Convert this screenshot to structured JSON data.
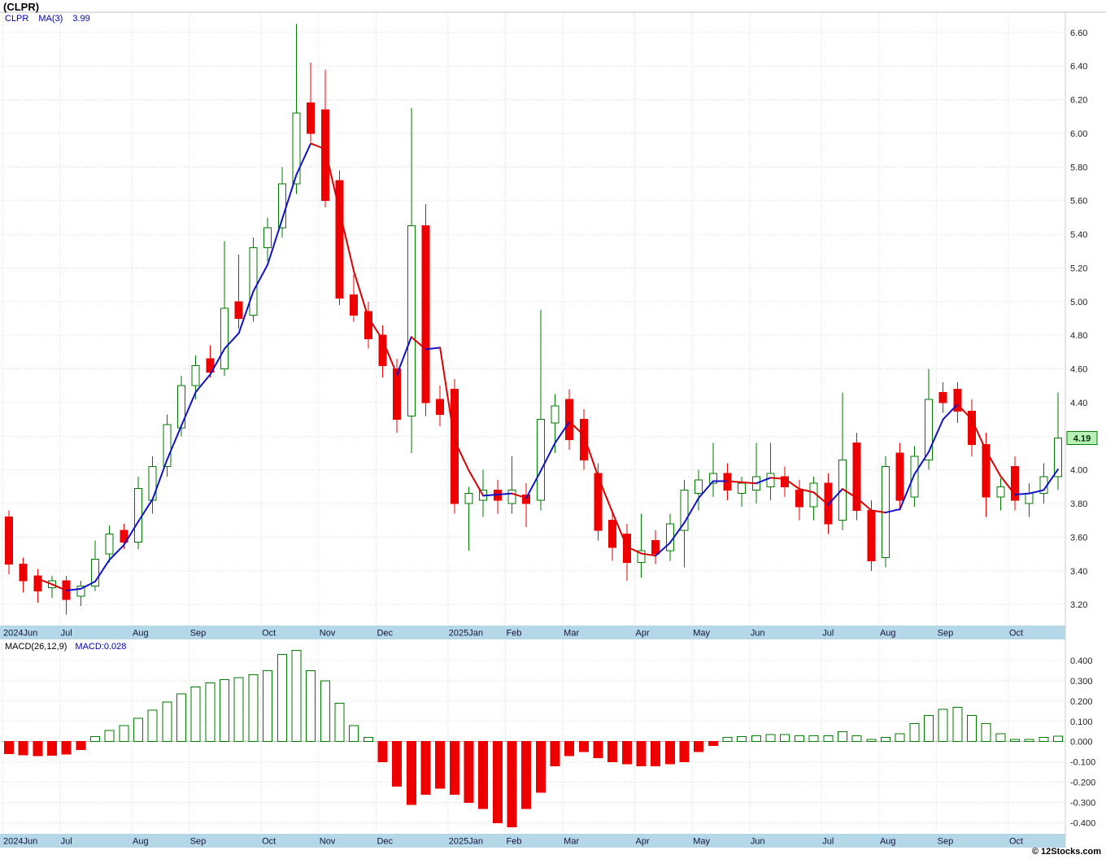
{
  "title": "(CLPR)",
  "legend": {
    "symbol": "CLPR",
    "ma_label": "MA(3)",
    "ma_value": "3.99"
  },
  "macd_legend": {
    "label": "MACD(26,12,9)",
    "value_label": "MACD:0.028"
  },
  "footer": {
    "copyright": "© 12Stocks.com"
  },
  "last_price_tag": "4.19",
  "colors": {
    "up": "#007a00",
    "down": "#ee0000",
    "ma_up": "#1111cc",
    "ma_down": "#dd0000",
    "grid": "#d9d9d9",
    "axis_text": "#222222",
    "strip_bg": "#b5d8e9",
    "strip_text": "#14143c",
    "tag_bg": "#b8f0b8",
    "tag_border": "#008000",
    "tag_text": "#003300",
    "legend_color": "#0000bb"
  },
  "chart_data": {
    "type": "candlestick",
    "symbol": "CLPR",
    "title": "(CLPR)",
    "ma_period": 3,
    "price_axis": {
      "min": 3.08,
      "max": 6.72,
      "ticks": [
        6.6,
        6.4,
        6.2,
        6.0,
        5.8,
        5.6,
        5.4,
        5.2,
        5.0,
        4.8,
        4.6,
        4.4,
        4.2,
        4.0,
        3.8,
        3.6,
        3.4,
        3.2
      ]
    },
    "macd_axis": {
      "min": -0.45,
      "max": 0.5,
      "ticks": [
        0.4,
        0.3,
        0.2,
        0.1,
        0.0,
        -0.1,
        -0.2,
        -0.3,
        -0.4
      ]
    },
    "months": [
      {
        "label": "2024Jun",
        "i": 0
      },
      {
        "label": "Jul",
        "i": 4
      },
      {
        "label": "Aug",
        "i": 9
      },
      {
        "label": "Sep",
        "i": 13
      },
      {
        "label": "Oct",
        "i": 18
      },
      {
        "label": "Nov",
        "i": 22
      },
      {
        "label": "Dec",
        "i": 26
      },
      {
        "label": "2025Jan",
        "i": 31
      },
      {
        "label": "Feb",
        "i": 35
      },
      {
        "label": "Mar",
        "i": 39
      },
      {
        "label": "Apr",
        "i": 44
      },
      {
        "label": "May",
        "i": 48
      },
      {
        "label": "Jun",
        "i": 52
      },
      {
        "label": "Jul",
        "i": 57
      },
      {
        "label": "Aug",
        "i": 61
      },
      {
        "label": "Sep",
        "i": 65
      },
      {
        "label": "Oct",
        "i": 70
      }
    ],
    "candles": [
      [
        3.72,
        3.76,
        3.38,
        3.44
      ],
      [
        3.44,
        3.48,
        3.27,
        3.34
      ],
      [
        3.37,
        3.41,
        3.21,
        3.28
      ],
      [
        3.3,
        3.37,
        3.24,
        3.34
      ],
      [
        3.34,
        3.37,
        3.14,
        3.23
      ],
      [
        3.25,
        3.34,
        3.19,
        3.31
      ],
      [
        3.31,
        3.58,
        3.28,
        3.47
      ],
      [
        3.5,
        3.67,
        3.45,
        3.62
      ],
      [
        3.64,
        3.68,
        3.53,
        3.57
      ],
      [
        3.57,
        3.96,
        3.53,
        3.89
      ],
      [
        3.82,
        4.08,
        3.74,
        4.02
      ],
      [
        4.02,
        4.33,
        3.96,
        4.27
      ],
      [
        4.25,
        4.56,
        4.2,
        4.5
      ],
      [
        4.5,
        4.68,
        4.42,
        4.62
      ],
      [
        4.66,
        4.74,
        4.55,
        4.58
      ],
      [
        4.6,
        5.36,
        4.56,
        4.96
      ],
      [
        5.0,
        5.28,
        4.84,
        4.9
      ],
      [
        4.92,
        5.38,
        4.88,
        5.32
      ],
      [
        5.32,
        5.5,
        5.24,
        5.44
      ],
      [
        5.44,
        5.8,
        5.38,
        5.7
      ],
      [
        5.7,
        6.65,
        5.64,
        6.12
      ],
      [
        6.18,
        6.42,
        5.95,
        6.0
      ],
      [
        6.14,
        6.38,
        5.56,
        5.6
      ],
      [
        5.72,
        5.78,
        4.98,
        5.02
      ],
      [
        5.04,
        5.16,
        4.88,
        4.92
      ],
      [
        4.94,
        5.0,
        4.72,
        4.78
      ],
      [
        4.8,
        4.86,
        4.55,
        4.62
      ],
      [
        4.6,
        4.66,
        4.22,
        4.3
      ],
      [
        4.32,
        6.15,
        4.1,
        5.45
      ],
      [
        5.45,
        5.58,
        4.32,
        4.4
      ],
      [
        4.42,
        4.5,
        4.26,
        4.33
      ],
      [
        4.48,
        4.54,
        3.74,
        3.8
      ],
      [
        3.8,
        3.9,
        3.52,
        3.86
      ],
      [
        3.82,
        4.0,
        3.72,
        3.88
      ],
      [
        3.88,
        3.94,
        3.74,
        3.82
      ],
      [
        3.8,
        4.08,
        3.74,
        3.88
      ],
      [
        3.85,
        3.92,
        3.66,
        3.8
      ],
      [
        3.82,
        4.95,
        3.76,
        4.3
      ],
      [
        4.28,
        4.45,
        4.1,
        4.38
      ],
      [
        4.42,
        4.48,
        4.12,
        4.18
      ],
      [
        4.3,
        4.36,
        4.0,
        4.06
      ],
      [
        3.98,
        4.04,
        3.58,
        3.64
      ],
      [
        3.7,
        3.76,
        3.46,
        3.54
      ],
      [
        3.62,
        3.68,
        3.34,
        3.45
      ],
      [
        3.45,
        3.74,
        3.36,
        3.52
      ],
      [
        3.58,
        3.64,
        3.44,
        3.5
      ],
      [
        3.52,
        3.74,
        3.46,
        3.68
      ],
      [
        3.64,
        3.94,
        3.42,
        3.88
      ],
      [
        3.86,
        4.0,
        3.76,
        3.94
      ],
      [
        3.92,
        4.16,
        3.84,
        3.98
      ],
      [
        3.98,
        4.04,
        3.82,
        3.88
      ],
      [
        3.86,
        3.96,
        3.78,
        3.92
      ],
      [
        3.88,
        4.16,
        3.8,
        3.96
      ],
      [
        3.9,
        4.16,
        3.82,
        3.98
      ],
      [
        3.96,
        4.02,
        3.84,
        3.9
      ],
      [
        3.88,
        3.94,
        3.7,
        3.78
      ],
      [
        3.78,
        3.96,
        3.7,
        3.92
      ],
      [
        3.92,
        3.98,
        3.62,
        3.68
      ],
      [
        3.7,
        4.46,
        3.64,
        4.06
      ],
      [
        4.16,
        4.22,
        3.7,
        3.76
      ],
      [
        3.76,
        3.82,
        3.4,
        3.46
      ],
      [
        3.48,
        4.08,
        3.42,
        4.02
      ],
      [
        4.1,
        4.16,
        3.76,
        3.82
      ],
      [
        3.84,
        4.14,
        3.78,
        4.08
      ],
      [
        4.06,
        4.6,
        4.0,
        4.42
      ],
      [
        4.46,
        4.52,
        4.34,
        4.4
      ],
      [
        4.48,
        4.52,
        4.28,
        4.35
      ],
      [
        4.35,
        4.42,
        4.08,
        4.15
      ],
      [
        4.15,
        4.22,
        3.72,
        3.84
      ],
      [
        3.84,
        3.95,
        3.76,
        3.9
      ],
      [
        4.02,
        4.08,
        3.76,
        3.82
      ],
      [
        3.8,
        3.92,
        3.72,
        3.86
      ],
      [
        3.86,
        4.04,
        3.8,
        3.96
      ],
      [
        3.96,
        4.46,
        3.88,
        4.19
      ]
    ],
    "macd": [
      -0.06,
      -0.065,
      -0.07,
      -0.068,
      -0.062,
      -0.04,
      0.025,
      0.055,
      0.08,
      0.115,
      0.155,
      0.195,
      0.235,
      0.27,
      0.29,
      0.305,
      0.315,
      0.33,
      0.35,
      0.43,
      0.45,
      0.35,
      0.3,
      0.19,
      0.08,
      0.02,
      -0.1,
      -0.22,
      -0.31,
      -0.26,
      -0.23,
      -0.26,
      -0.3,
      -0.33,
      -0.4,
      -0.42,
      -0.33,
      -0.25,
      -0.12,
      -0.07,
      -0.05,
      -0.08,
      -0.1,
      -0.11,
      -0.12,
      -0.12,
      -0.11,
      -0.1,
      -0.05,
      -0.02,
      0.02,
      0.025,
      0.03,
      0.035,
      0.035,
      0.03,
      0.03,
      0.03,
      0.05,
      0.03,
      0.01,
      0.02,
      0.04,
      0.09,
      0.13,
      0.16,
      0.17,
      0.13,
      0.09,
      0.04,
      0.01,
      0.01,
      0.02,
      0.028
    ]
  }
}
